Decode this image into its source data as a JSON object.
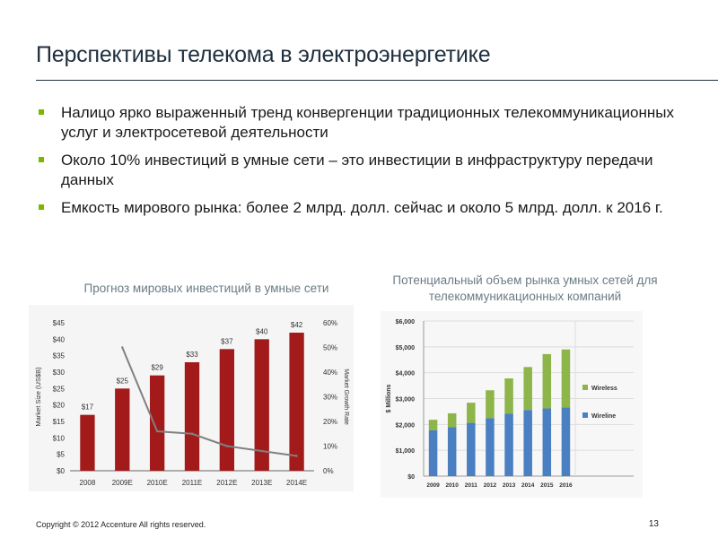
{
  "slide": {
    "title": "Перспективы телекома в электроэнергетике",
    "bullets": [
      "Налицо ярко выраженный тренд конвергенции традиционных телекоммуникационных услуг и электросетевой деятельности",
      "Около 10% инвестиций в умные сети – это инвестиции в инфраструктуру передачи данных",
      "Емкость мирового рынка: более 2 млрд. долл. сейчас и около 5 млрд. долл. к 2016 г."
    ],
    "chart1_caption": "Прогноз мировых инвестиций в умные сети",
    "chart2_caption": "Потенциальный объем рынка умных сетей для телекоммуникационных компаний",
    "footer": "Copyright © 2012 Accenture  All rights reserved.",
    "page_number": "13"
  },
  "colors": {
    "accent_green": "#7ab800",
    "bar_red": "#a31a1a",
    "line_gray": "#808080",
    "wireline_blue": "#4a7fc1",
    "wireless_green": "#8db54a"
  },
  "chart_data": [
    {
      "type": "bar",
      "title": "Прогноз мировых инвестиций в умные сети",
      "categories": [
        "2008",
        "2009E",
        "2010E",
        "2011E",
        "2012E",
        "2013E",
        "2014E"
      ],
      "values": [
        17,
        25,
        29,
        33,
        37,
        40,
        42
      ],
      "value_labels": [
        "$17",
        "$25",
        "$29",
        "$33",
        "$37",
        "$40",
        "$42"
      ],
      "ylabel": "Market Size (US$B)",
      "ylim": [
        0,
        45
      ],
      "yticks": [
        "$0",
        "$5",
        "$10",
        "$15",
        "$20",
        "$25",
        "$30",
        "$35",
        "$40",
        "$45"
      ],
      "secondary": {
        "type": "line",
        "name": "Market Growth Rate",
        "ylabel": "Market Growth Rate",
        "ylim": [
          0,
          60
        ],
        "yticks": [
          "0%",
          "10%",
          "20%",
          "30%",
          "40%",
          "50%",
          "60%"
        ],
        "x": [
          "2009E",
          "2010E",
          "2011E",
          "2012E",
          "2013E",
          "2014E"
        ],
        "values": [
          50,
          16,
          15,
          10,
          8,
          6
        ]
      }
    },
    {
      "type": "bar",
      "stacked": true,
      "title": "Потенциальный объем рынка умных сетей для телекоммуникационных компаний",
      "categories": [
        "2009",
        "2010",
        "2011",
        "2012",
        "2013",
        "2014",
        "2015",
        "2016"
      ],
      "series": [
        {
          "name": "Wireline",
          "values": [
            1780,
            1900,
            2060,
            2240,
            2420,
            2560,
            2620,
            2660
          ]
        },
        {
          "name": "Wireless",
          "values": [
            400,
            530,
            780,
            1080,
            1360,
            1660,
            2100,
            2240
          ]
        }
      ],
      "ylabel": "$ Millions",
      "ylim": [
        0,
        6000
      ],
      "yticks": [
        "$0",
        "$1,000",
        "$2,000",
        "$3,000",
        "$4,000",
        "$5,000",
        "$6,000"
      ],
      "legend": [
        "Wireless",
        "Wireline"
      ]
    }
  ]
}
